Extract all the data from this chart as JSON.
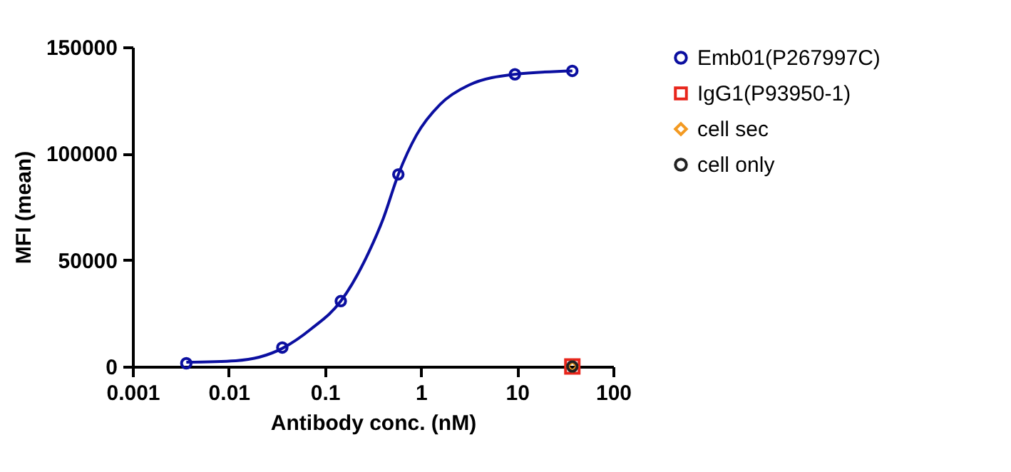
{
  "chart_data": {
    "type": "scatter",
    "xlabel": "Antibody conc. (nM)",
    "ylabel": "MFI (mean)",
    "log": "x",
    "legend": "right",
    "xlim": [
      0.001,
      100
    ],
    "xticks": [
      0.001,
      0.01,
      0.1,
      1,
      10,
      100
    ],
    "ylim": [
      0,
      150000
    ],
    "yticks": [
      0,
      50000,
      100000,
      150000
    ],
    "series": [
      {
        "type": "line",
        "color": "#0b0fa0",
        "x": [
          0.00362,
          0.01183,
          0.0361,
          0.0733,
          0.1466,
          0.287,
          0.405,
          0.582,
          0.897,
          1.585,
          3.14,
          9.5,
          37.6
        ],
        "values": [
          2000,
          2700,
          8500,
          17900,
          30700,
          53700,
          69400,
          90200,
          108600,
          123100,
          132100,
          137200,
          138800
        ]
      },
      {
        "name": "Emb01(P267997C)",
        "type": "scatter",
        "marker": "circle",
        "color": "#0b0fa0",
        "x": [
          0.00362,
          0.0361,
          0.1466,
          0.582,
          9.5,
          37.6
        ],
        "values": [
          1500,
          8900,
          30700,
          90200,
          137200,
          138800
        ]
      },
      {
        "name": "IgG1(P93950-1)",
        "type": "scatter",
        "marker": "square",
        "color": "#e8251b",
        "x": [
          37.6
        ],
        "values": [
          0
        ]
      },
      {
        "name": "cell sec",
        "type": "scatter",
        "marker": "diamond",
        "color": "#f39a22",
        "x": [
          37.6
        ],
        "values": [
          0
        ]
      },
      {
        "name": "cell only",
        "type": "scatter",
        "marker": "circle",
        "color": "#222222",
        "x": [
          37.6
        ],
        "values": [
          0
        ]
      }
    ]
  }
}
